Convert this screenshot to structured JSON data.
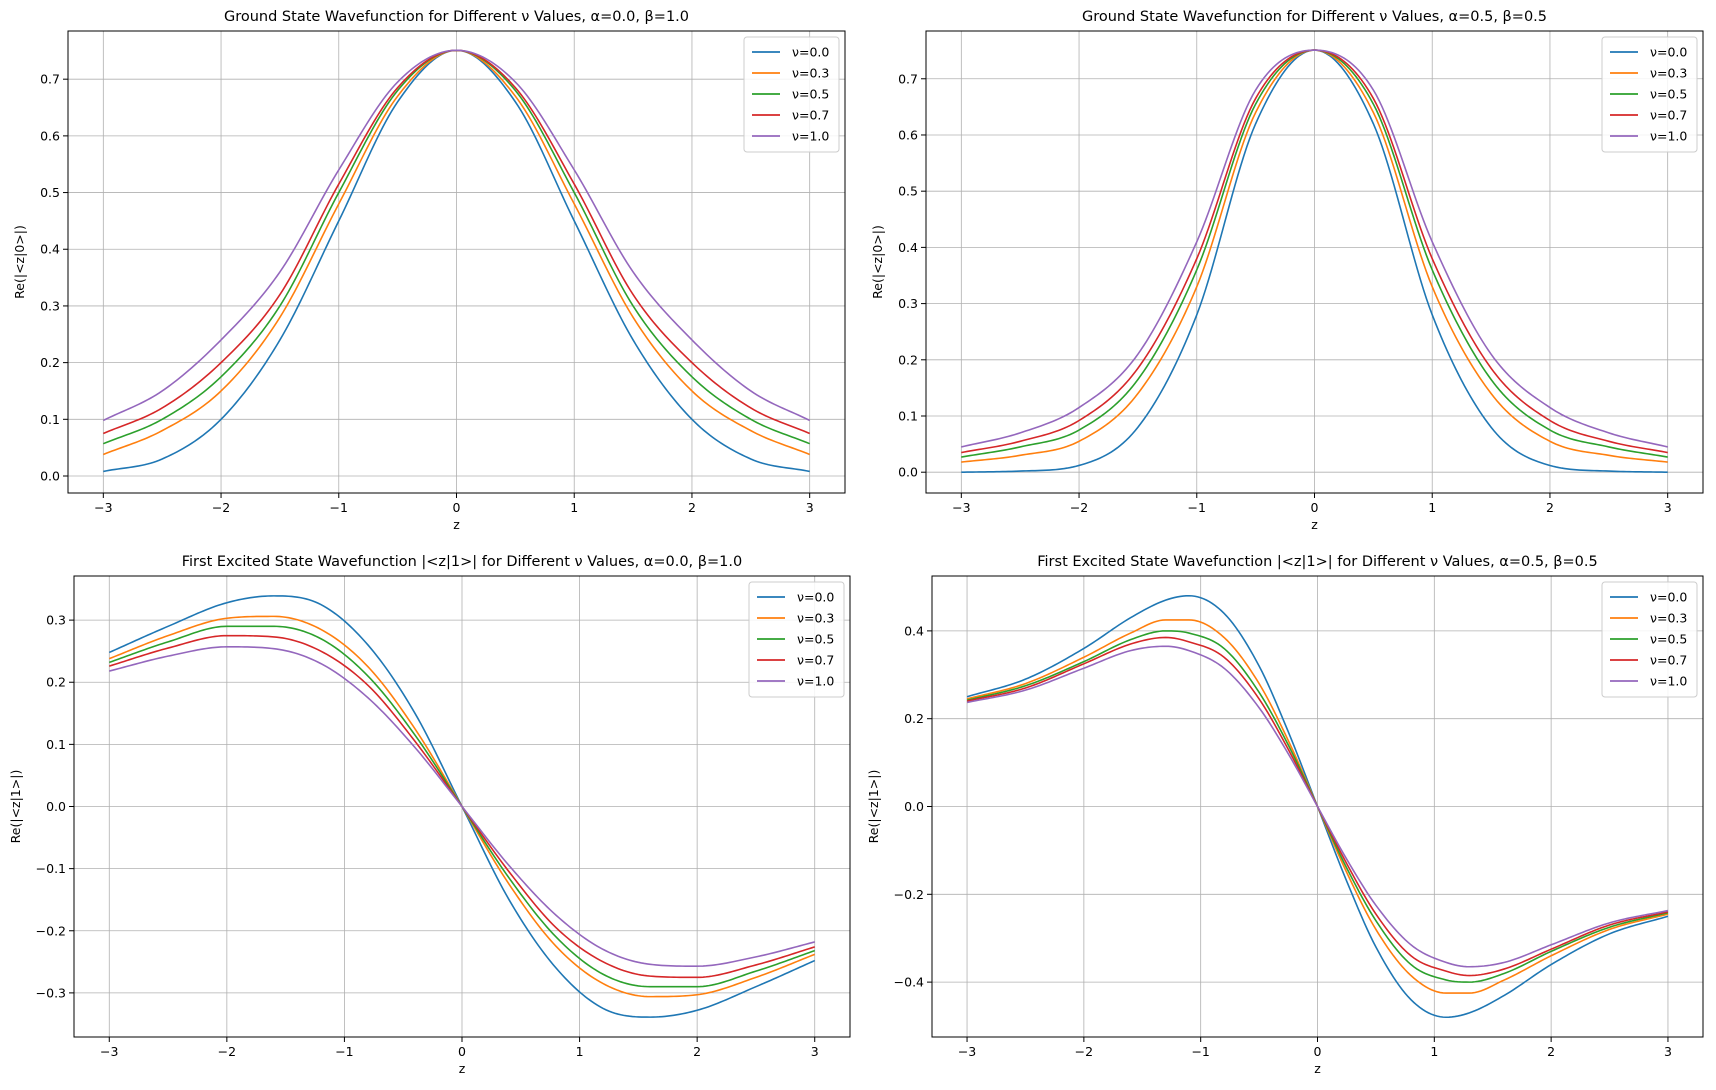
{
  "figure": {
    "background": "#ffffff"
  },
  "styles": {
    "grid_color": "#b0b0b0",
    "axis_color": "#000000"
  },
  "chart_data": [
    {
      "type": "line",
      "title": "Ground State Wavefunction  for Different ν Values, α=0.0,  β=1.0",
      "xlabel": "z",
      "ylabel": "Re(|<z|0>|)",
      "xlim": [
        -3.3,
        3.3
      ],
      "ylim": [
        -0.03,
        0.785
      ],
      "xticks": [
        -3,
        -2,
        -1,
        0,
        1,
        2,
        3
      ],
      "xtick_labels": [
        "−3",
        "−2",
        "−1",
        "0",
        "1",
        "2",
        "3"
      ],
      "yticks": [
        0.0,
        0.1,
        0.2,
        0.3,
        0.4,
        0.5,
        0.6,
        0.7
      ],
      "ytick_labels": [
        "0.0",
        "0.1",
        "0.2",
        "0.3",
        "0.4",
        "0.5",
        "0.6",
        "0.7"
      ],
      "grid": true,
      "legend_position": "top-right",
      "x": [
        -3,
        -2.5,
        -2,
        -1.5,
        -1,
        -0.5,
        0,
        0.5,
        1,
        1.5,
        2,
        2.5,
        3
      ],
      "series": [
        {
          "name": "ν=0.0",
          "color": "#1f77b4",
          "values": [
            0.008,
            0.03,
            0.1,
            0.24,
            0.45,
            0.66,
            0.751,
            0.66,
            0.45,
            0.24,
            0.1,
            0.03,
            0.008
          ]
        },
        {
          "name": "ν=0.3",
          "color": "#ff7f0e",
          "values": [
            0.038,
            0.08,
            0.15,
            0.28,
            0.48,
            0.67,
            0.751,
            0.67,
            0.48,
            0.28,
            0.15,
            0.08,
            0.038
          ]
        },
        {
          "name": "ν=0.5",
          "color": "#2ca02c",
          "values": [
            0.057,
            0.1,
            0.175,
            0.3,
            0.5,
            0.68,
            0.751,
            0.68,
            0.5,
            0.3,
            0.175,
            0.1,
            0.057
          ]
        },
        {
          "name": "ν=0.7",
          "color": "#d62728",
          "values": [
            0.075,
            0.12,
            0.2,
            0.32,
            0.515,
            0.685,
            0.751,
            0.685,
            0.515,
            0.32,
            0.2,
            0.12,
            0.075
          ]
        },
        {
          "name": "ν=1.0",
          "color": "#9467bd",
          "values": [
            0.098,
            0.15,
            0.24,
            0.36,
            0.54,
            0.695,
            0.751,
            0.695,
            0.54,
            0.36,
            0.24,
            0.15,
            0.098
          ]
        }
      ]
    },
    {
      "type": "line",
      "title": "Ground State Wavefunction  for Different ν Values, α=0.5,  β=0.5",
      "xlabel": "z",
      "ylabel": "Re(|<z|0>|)",
      "xlim": [
        -3.3,
        3.3
      ],
      "ylim": [
        -0.037,
        0.785
      ],
      "xticks": [
        -3,
        -2,
        -1,
        0,
        1,
        2,
        3
      ],
      "xtick_labels": [
        "−3",
        "−2",
        "−1",
        "0",
        "1",
        "2",
        "3"
      ],
      "yticks": [
        0.0,
        0.1,
        0.2,
        0.3,
        0.4,
        0.5,
        0.6,
        0.7
      ],
      "ytick_labels": [
        "0.0",
        "0.1",
        "0.2",
        "0.3",
        "0.4",
        "0.5",
        "0.6",
        "0.7"
      ],
      "grid": true,
      "legend_position": "top-right",
      "x": [
        -3,
        -2.5,
        -2,
        -1.5,
        -1,
        -0.5,
        0,
        0.5,
        1,
        1.5,
        2,
        2.5,
        3
      ],
      "series": [
        {
          "name": "ν=0.0",
          "color": "#1f77b4",
          "values": [
            0.0,
            0.002,
            0.012,
            0.08,
            0.28,
            0.62,
            0.751,
            0.62,
            0.28,
            0.08,
            0.012,
            0.002,
            0.0
          ]
        },
        {
          "name": "ν=0.3",
          "color": "#ff7f0e",
          "values": [
            0.018,
            0.03,
            0.055,
            0.14,
            0.33,
            0.64,
            0.751,
            0.64,
            0.33,
            0.14,
            0.055,
            0.03,
            0.018
          ]
        },
        {
          "name": "ν=0.5",
          "color": "#2ca02c",
          "values": [
            0.027,
            0.045,
            0.075,
            0.165,
            0.36,
            0.655,
            0.751,
            0.655,
            0.36,
            0.165,
            0.075,
            0.045,
            0.027
          ]
        },
        {
          "name": "ν=0.7",
          "color": "#d62728",
          "values": [
            0.035,
            0.055,
            0.092,
            0.185,
            0.38,
            0.665,
            0.751,
            0.665,
            0.38,
            0.185,
            0.092,
            0.055,
            0.035
          ]
        },
        {
          "name": "ν=1.0",
          "color": "#9467bd",
          "values": [
            0.045,
            0.07,
            0.115,
            0.21,
            0.41,
            0.68,
            0.751,
            0.68,
            0.41,
            0.21,
            0.115,
            0.07,
            0.045
          ]
        }
      ]
    },
    {
      "type": "line",
      "title": "First Excited State Wavefunction |<z|1>| for Different ν Values, α=0.0,  β=1.0",
      "xlabel": "z",
      "ylabel": "Re(|<z|1>|)",
      "xlim": [
        -3.3,
        3.3
      ],
      "ylim": [
        -0.371,
        0.371
      ],
      "xticks": [
        -3,
        -2,
        -1,
        0,
        1,
        2,
        3
      ],
      "xtick_labels": [
        "−3",
        "−2",
        "−1",
        "0",
        "1",
        "2",
        "3"
      ],
      "yticks": [
        -0.3,
        -0.2,
        -0.1,
        0.0,
        0.1,
        0.2,
        0.3
      ],
      "ytick_labels": [
        "−0.3",
        "−0.2",
        "−0.1",
        "0.0",
        "0.1",
        "0.2",
        "0.3"
      ],
      "grid": true,
      "legend_position": "top-right",
      "x": [
        -3,
        -2.5,
        -2,
        -1.6,
        -1.2,
        -0.8,
        -0.4,
        0,
        0.4,
        0.8,
        1.2,
        1.6,
        2,
        2.5,
        3
      ],
      "series": [
        {
          "name": "ν=0.0",
          "color": "#1f77b4",
          "values": [
            0.248,
            0.29,
            0.328,
            0.339,
            0.325,
            0.26,
            0.15,
            0.0,
            -0.15,
            -0.26,
            -0.325,
            -0.339,
            -0.328,
            -0.29,
            -0.248
          ]
        },
        {
          "name": "ν=0.3",
          "color": "#ff7f0e",
          "values": [
            0.238,
            0.275,
            0.303,
            0.306,
            0.285,
            0.225,
            0.125,
            0.0,
            -0.125,
            -0.225,
            -0.285,
            -0.306,
            -0.303,
            -0.275,
            -0.238
          ]
        },
        {
          "name": "ν=0.5",
          "color": "#2ca02c",
          "values": [
            0.232,
            0.265,
            0.29,
            0.29,
            0.27,
            0.21,
            0.115,
            0.0,
            -0.115,
            -0.21,
            -0.27,
            -0.29,
            -0.29,
            -0.265,
            -0.232
          ]
        },
        {
          "name": "ν=0.7",
          "color": "#d62728",
          "values": [
            0.226,
            0.255,
            0.275,
            0.273,
            0.25,
            0.195,
            0.105,
            0.0,
            -0.105,
            -0.195,
            -0.25,
            -0.273,
            -0.275,
            -0.255,
            -0.226
          ]
        },
        {
          "name": "ν=1.0",
          "color": "#9467bd",
          "values": [
            0.218,
            0.242,
            0.257,
            0.254,
            0.23,
            0.175,
            0.095,
            0.0,
            -0.095,
            -0.175,
            -0.23,
            -0.254,
            -0.257,
            -0.242,
            -0.218
          ]
        }
      ]
    },
    {
      "type": "line",
      "title": "First Excited State Wavefunction |<z|1>| for Different ν Values, α=0.5,  β=0.5",
      "xlabel": "z",
      "ylabel": "Re(|<z|1>|)",
      "xlim": [
        -3.3,
        3.3
      ],
      "ylim": [
        -0.525,
        0.525
      ],
      "xticks": [
        -3,
        -2,
        -1,
        0,
        1,
        2,
        3
      ],
      "xtick_labels": [
        "−3",
        "−2",
        "−1",
        "0",
        "1",
        "2",
        "3"
      ],
      "yticks": [
        -0.4,
        -0.2,
        0.0,
        0.2,
        0.4
      ],
      "ytick_labels": [
        "−0.4",
        "−0.2",
        "0.0",
        "0.2",
        "0.4"
      ],
      "grid": true,
      "legend_position": "top-right",
      "x": [
        -3,
        -2.5,
        -2,
        -1.6,
        -1.3,
        -1.1,
        -0.8,
        -0.5,
        -0.25,
        0,
        0.25,
        0.5,
        0.8,
        1.1,
        1.3,
        1.6,
        2,
        2.5,
        3
      ],
      "series": [
        {
          "name": "ν=0.0",
          "color": "#1f77b4",
          "values": [
            0.25,
            0.29,
            0.36,
            0.43,
            0.47,
            0.48,
            0.44,
            0.32,
            0.17,
            0.0,
            -0.17,
            -0.32,
            -0.44,
            -0.48,
            -0.47,
            -0.43,
            -0.36,
            -0.29,
            -0.25
          ]
        },
        {
          "name": "ν=0.3",
          "color": "#ff7f0e",
          "values": [
            0.245,
            0.28,
            0.34,
            0.395,
            0.425,
            0.425,
            0.385,
            0.28,
            0.15,
            0.0,
            -0.15,
            -0.28,
            -0.385,
            -0.425,
            -0.425,
            -0.395,
            -0.34,
            -0.28,
            -0.245
          ]
        },
        {
          "name": "ν=0.5",
          "color": "#2ca02c",
          "values": [
            0.242,
            0.275,
            0.33,
            0.38,
            0.4,
            0.395,
            0.36,
            0.26,
            0.14,
            0.0,
            -0.14,
            -0.26,
            -0.36,
            -0.395,
            -0.4,
            -0.38,
            -0.33,
            -0.275,
            -0.242
          ]
        },
        {
          "name": "ν=0.7",
          "color": "#d62728",
          "values": [
            0.24,
            0.27,
            0.325,
            0.37,
            0.385,
            0.375,
            0.34,
            0.245,
            0.13,
            0.0,
            -0.13,
            -0.245,
            -0.34,
            -0.375,
            -0.385,
            -0.37,
            -0.325,
            -0.27,
            -0.24
          ]
        },
        {
          "name": "ν=1.0",
          "color": "#9467bd",
          "values": [
            0.237,
            0.265,
            0.315,
            0.355,
            0.365,
            0.355,
            0.315,
            0.225,
            0.12,
            0.0,
            -0.12,
            -0.225,
            -0.315,
            -0.355,
            -0.365,
            -0.355,
            -0.315,
            -0.265,
            -0.237
          ]
        }
      ]
    }
  ]
}
